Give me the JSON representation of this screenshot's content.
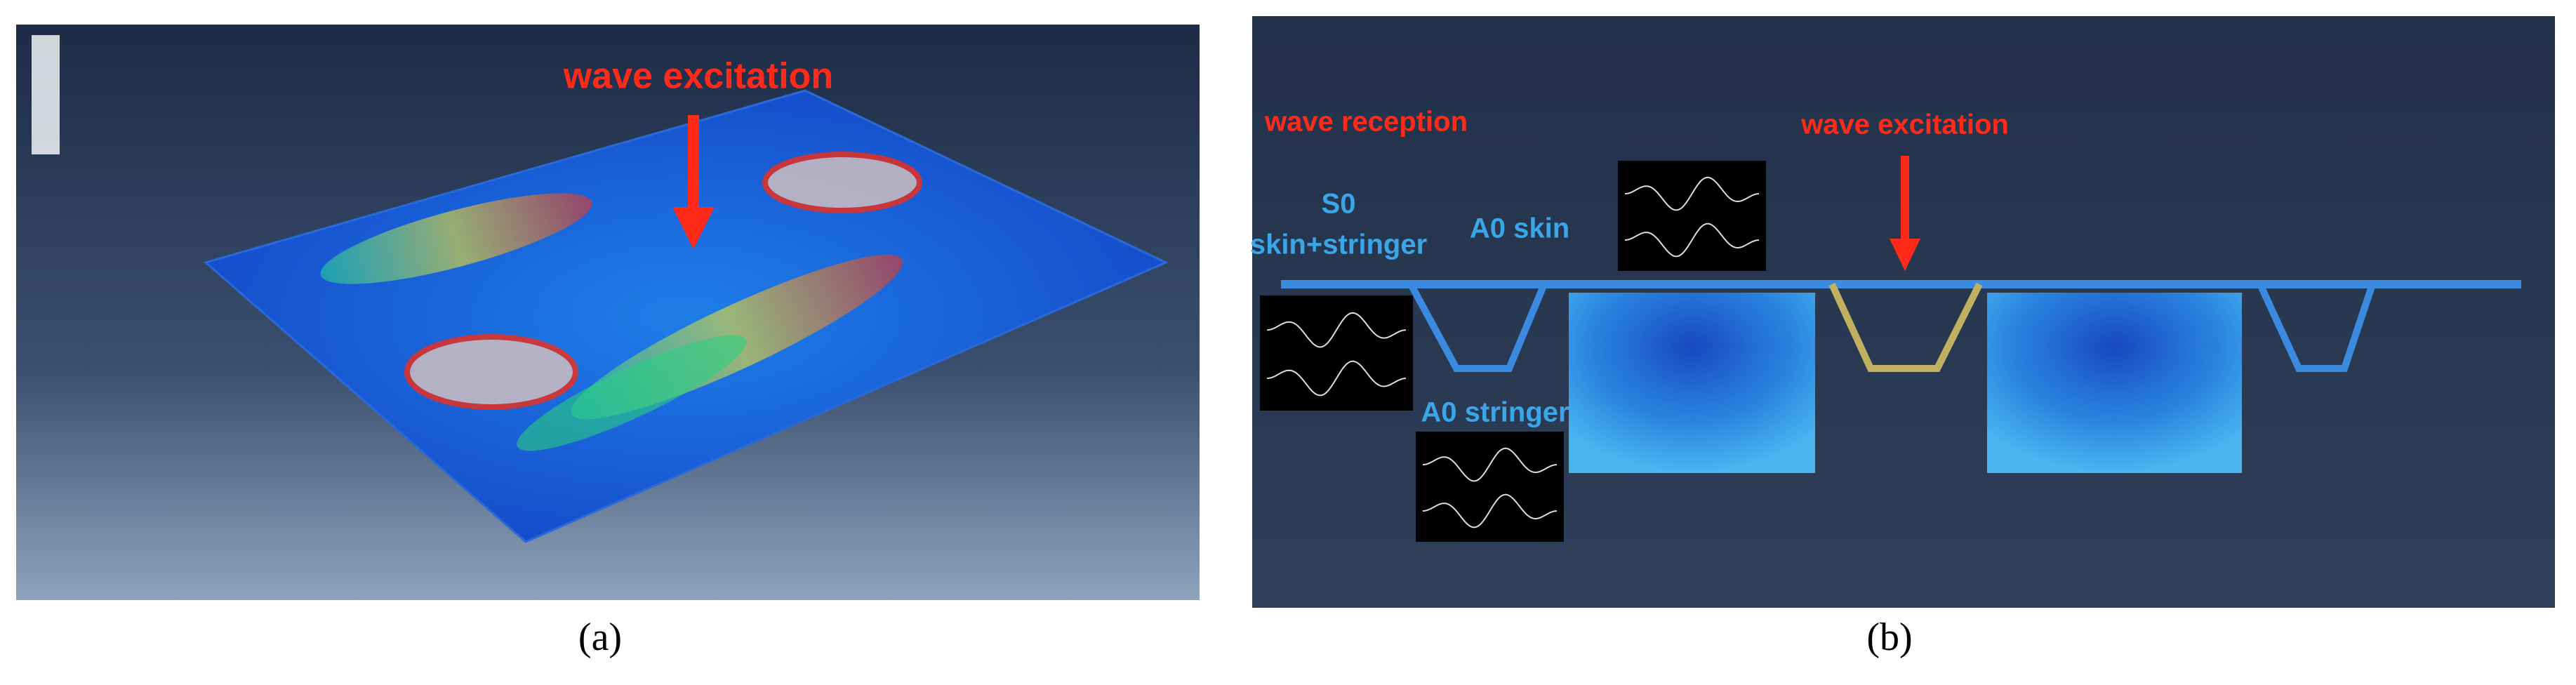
{
  "panel_a": {
    "annotation": "wave excitation",
    "caption": "(a)"
  },
  "panel_b": {
    "reception": "wave reception",
    "excitation": "wave excitation",
    "s0": "S0",
    "s0_sub": "skin+stringer",
    "a0_skin": "A0 skin",
    "a0_stringer": "A0 stringer",
    "caption": "(b)"
  }
}
